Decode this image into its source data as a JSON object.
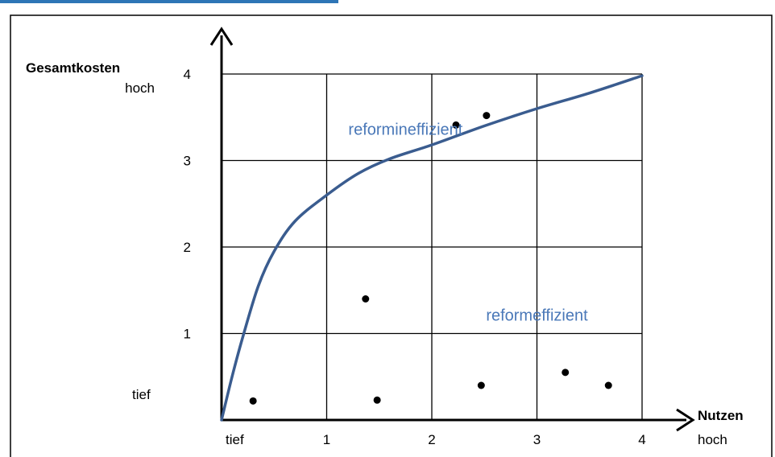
{
  "chart_data": {
    "type": "scatter",
    "x_axis": {
      "label": "Nutzen",
      "sub_label": "hoch",
      "low_label": "tief",
      "ticks": [
        "1",
        "2",
        "3",
        "4"
      ],
      "range": [
        0,
        4
      ]
    },
    "y_axis": {
      "label": "Gesamtkosten",
      "sub_label": "hoch",
      "low_label": "tief",
      "ticks": [
        "1",
        "2",
        "3",
        "4"
      ],
      "range": [
        0,
        4
      ]
    },
    "grid": true,
    "annotations": [
      {
        "text": "reformineffizient",
        "x": 1.75,
        "y": 3.3
      },
      {
        "text": "reformeffizient",
        "x": 3.0,
        "y": 1.15
      }
    ],
    "curve": {
      "color": "#3A5C8F",
      "points": [
        [
          0,
          0
        ],
        [
          0.1,
          0.5
        ],
        [
          0.2,
          0.95
        ],
        [
          0.35,
          1.55
        ],
        [
          0.5,
          1.95
        ],
        [
          0.7,
          2.3
        ],
        [
          1.0,
          2.6
        ],
        [
          1.3,
          2.85
        ],
        [
          1.6,
          3.02
        ],
        [
          2.0,
          3.18
        ],
        [
          2.5,
          3.4
        ],
        [
          3.0,
          3.6
        ],
        [
          3.5,
          3.78
        ],
        [
          4.0,
          3.98
        ]
      ]
    },
    "points": [
      {
        "x": 0.3,
        "y": 0.22
      },
      {
        "x": 1.48,
        "y": 0.23
      },
      {
        "x": 1.37,
        "y": 1.4
      },
      {
        "x": 2.23,
        "y": 3.41
      },
      {
        "x": 2.52,
        "y": 3.52
      },
      {
        "x": 2.47,
        "y": 0.4
      },
      {
        "x": 3.27,
        "y": 0.55
      },
      {
        "x": 3.68,
        "y": 0.4
      }
    ]
  },
  "colors": {
    "annotation": "#4A78B8",
    "top_strip": "#2E75B6"
  }
}
